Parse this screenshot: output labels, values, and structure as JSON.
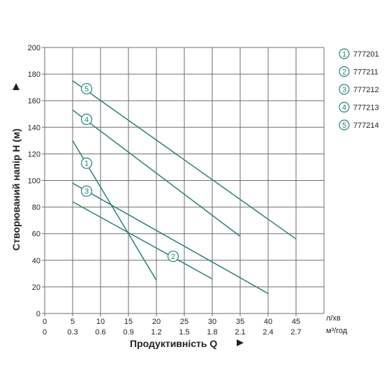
{
  "chart_data": {
    "type": "line",
    "title": "",
    "xlabel": "Продуктивність  Q",
    "ylabel": "Створюваний напір H (м)",
    "x_unit_primary": "л/хв",
    "x_unit_secondary": "м³/год",
    "xlim": [
      0,
      50
    ],
    "ylim": [
      0,
      200
    ],
    "x_ticks": [
      "0",
      "5",
      "10",
      "15",
      "20",
      "25",
      "30",
      "35",
      "40",
      "45"
    ],
    "x_ticks_secondary": [
      "0",
      "0.3",
      "0.6",
      "0.9",
      "1.2",
      "1.5",
      "1.8",
      "2.1",
      "2.4",
      "2.7"
    ],
    "y_ticks": [
      "0",
      "20",
      "40",
      "60",
      "80",
      "100",
      "120",
      "140",
      "160",
      "180",
      "200"
    ],
    "grid": true,
    "legend_position": "right",
    "line_color": "#2a7f7a",
    "series": [
      {
        "marker": "1",
        "name": "777201",
        "points": [
          [
            5,
            130
          ],
          [
            20,
            25
          ]
        ],
        "label_at": [
          7.5,
          113
        ]
      },
      {
        "marker": "2",
        "name": "777211",
        "points": [
          [
            5,
            84
          ],
          [
            30,
            26
          ]
        ],
        "label_at": [
          23,
          43
        ]
      },
      {
        "marker": "3",
        "name": "777212",
        "points": [
          [
            5,
            98
          ],
          [
            40,
            15
          ]
        ],
        "label_at": [
          7.5,
          92
        ]
      },
      {
        "marker": "4",
        "name": "777213",
        "points": [
          [
            5,
            153
          ],
          [
            35,
            58
          ]
        ],
        "label_at": [
          7.5,
          146
        ]
      },
      {
        "marker": "5",
        "name": "777214",
        "points": [
          [
            5,
            175
          ],
          [
            45,
            56
          ]
        ],
        "label_at": [
          7.5,
          169
        ]
      }
    ]
  }
}
